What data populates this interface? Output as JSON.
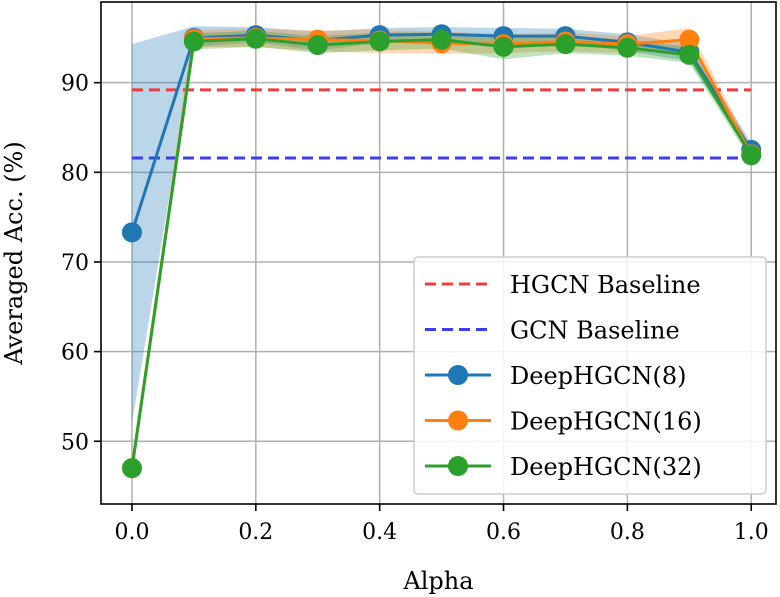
{
  "chart_data": {
    "type": "line",
    "title": "",
    "xlabel": "Alpha",
    "ylabel": "Averaged Acc. (%)",
    "xlim": [
      -0.05,
      1.04
    ],
    "ylim": [
      43,
      99
    ],
    "x_ticks": [
      0.0,
      0.2,
      0.4,
      0.6,
      0.8,
      1.0
    ],
    "x_tick_labels": [
      "0.0",
      "0.2",
      "0.4",
      "0.6",
      "0.8",
      "1.0"
    ],
    "y_ticks": [
      50,
      60,
      70,
      80,
      90
    ],
    "y_tick_labels": [
      "50",
      "60",
      "70",
      "80",
      "90"
    ],
    "grid": true,
    "legend_position": "lower-right",
    "baselines": [
      {
        "name": "HGCN Baseline",
        "value": 89.2,
        "color": "#f03c3c"
      },
      {
        "name": "GCN Baseline",
        "value": 81.6,
        "color": "#3c3cf0"
      }
    ],
    "x": [
      0.0,
      0.1,
      0.2,
      0.3,
      0.4,
      0.5,
      0.6,
      0.7,
      0.8,
      0.9,
      1.0
    ],
    "series": [
      {
        "name": "DeepHGCN(8)",
        "color": "#1f77b4",
        "values": [
          73.3,
          95.0,
          95.3,
          94.7,
          95.3,
          95.4,
          95.2,
          95.2,
          94.5,
          93.4,
          82.5
        ],
        "lower": [
          52,
          94.0,
          94.5,
          93.6,
          94.4,
          94.5,
          94.3,
          94.4,
          93.5,
          92.4,
          81.8
        ],
        "upper": [
          94.3,
          96.3,
          96.2,
          95.7,
          96.1,
          96.2,
          96.1,
          96.0,
          95.4,
          94.3,
          83.3
        ]
      },
      {
        "name": "DeepHGCN(16)",
        "color": "#ff7f0e",
        "values": [
          47.0,
          94.9,
          95.0,
          94.8,
          94.7,
          94.4,
          94.3,
          94.6,
          94.3,
          94.8,
          82.0
        ],
        "lower": [
          47.0,
          94.0,
          94.0,
          93.5,
          93.3,
          93.2,
          93.3,
          93.5,
          93.3,
          93.5,
          81.4
        ],
        "upper": [
          47.0,
          95.9,
          96.0,
          95.8,
          95.9,
          95.7,
          95.4,
          95.6,
          95.2,
          96.1,
          82.7
        ]
      },
      {
        "name": "DeepHGCN(32)",
        "color": "#2ca02c",
        "values": [
          47.0,
          94.6,
          94.9,
          94.2,
          94.6,
          94.8,
          94.0,
          94.3,
          93.9,
          93.1,
          81.9
        ],
        "lower": [
          47.0,
          93.7,
          94.0,
          93.3,
          93.6,
          93.8,
          92.6,
          93.3,
          93.0,
          92.2,
          81.3
        ],
        "upper": [
          47.0,
          95.5,
          95.8,
          95.2,
          95.6,
          95.6,
          95.3,
          95.2,
          94.8,
          94.0,
          82.5
        ]
      }
    ]
  }
}
